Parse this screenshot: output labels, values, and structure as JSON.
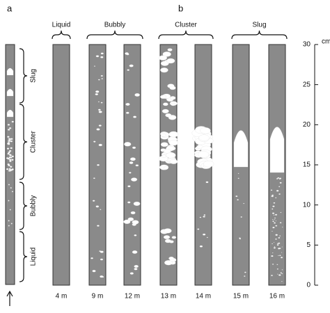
{
  "panels": {
    "a": "a",
    "b": "b"
  },
  "left_regimes": [
    "Slug",
    "Cluster",
    "Bubbly",
    "Liquid"
  ],
  "top_regimes": [
    "Liquid",
    "Bubbly",
    "Cluster",
    "Slug"
  ],
  "columns": [
    "4 m",
    "9 m",
    "12 m",
    "13 m",
    "14 m",
    "15 m",
    "16 m"
  ],
  "scale": {
    "unit": "cm",
    "ticks": [
      0,
      5,
      10,
      15,
      20,
      25,
      30
    ]
  }
}
